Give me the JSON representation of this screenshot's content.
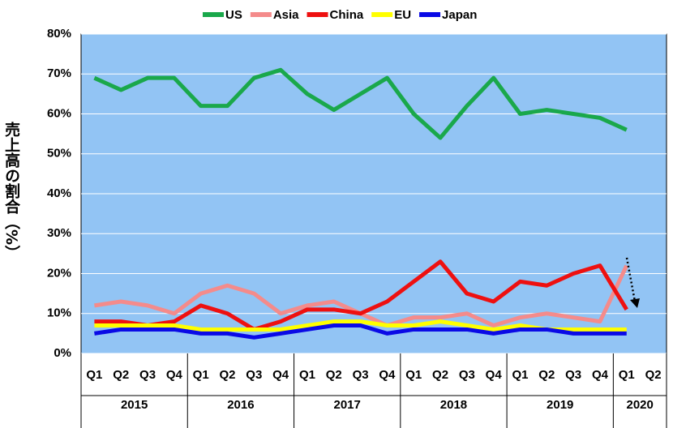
{
  "chart_data": {
    "type": "line",
    "y_label": "売上高の割合（%）",
    "categories": [
      "Q1",
      "Q2",
      "Q3",
      "Q4",
      "Q1",
      "Q2",
      "Q3",
      "Q4",
      "Q1",
      "Q2",
      "Q3",
      "Q4",
      "Q1",
      "Q2",
      "Q3",
      "Q4",
      "Q1",
      "Q2",
      "Q3",
      "Q4",
      "Q1",
      "Q2"
    ],
    "category_groups": [
      "2015",
      "2016",
      "2017",
      "2018",
      "2019",
      "2020"
    ],
    "ylim": [
      0,
      80
    ],
    "yticks": [
      {
        "value": 0,
        "label": "0%"
      },
      {
        "value": 10,
        "label": "10%"
      },
      {
        "value": 20,
        "label": "20%"
      },
      {
        "value": 30,
        "label": "30%"
      },
      {
        "value": 40,
        "label": "40%"
      },
      {
        "value": 50,
        "label": "50%"
      },
      {
        "value": 60,
        "label": "60%"
      },
      {
        "value": 70,
        "label": "70%"
      },
      {
        "value": 80,
        "label": "80%"
      }
    ],
    "grid": true,
    "legend": "top",
    "series": [
      {
        "name": "US",
        "color": "#1aa84b",
        "values": [
          69,
          66,
          69,
          69,
          62,
          62,
          69,
          71,
          65,
          61,
          65,
          69,
          60,
          54,
          62,
          69,
          60,
          61,
          60,
          59,
          56,
          null
        ]
      },
      {
        "name": "Asia",
        "color": "#f48b8b",
        "values": [
          12,
          13,
          12,
          10,
          15,
          17,
          15,
          10,
          12,
          13,
          10,
          7,
          9,
          9,
          10,
          7,
          9,
          10,
          9,
          8,
          22,
          null
        ]
      },
      {
        "name": "China",
        "color": "#ee1010",
        "values": [
          8,
          8,
          7,
          8,
          12,
          10,
          6,
          8,
          11,
          11,
          10,
          13,
          18,
          23,
          15,
          13,
          18,
          17,
          20,
          22,
          11,
          null
        ]
      },
      {
        "name": "EU",
        "color": "#ffff00",
        "values": [
          7,
          7,
          7,
          7,
          6,
          6,
          6,
          6,
          7,
          8,
          8,
          7,
          7,
          8,
          7,
          6,
          7,
          6,
          6,
          6,
          6,
          null
        ]
      },
      {
        "name": "Japan",
        "color": "#0a0ae6",
        "values": [
          5,
          6,
          6,
          6,
          5,
          5,
          4,
          5,
          6,
          7,
          7,
          5,
          6,
          6,
          6,
          5,
          6,
          6,
          5,
          5,
          5,
          null
        ]
      }
    ]
  }
}
